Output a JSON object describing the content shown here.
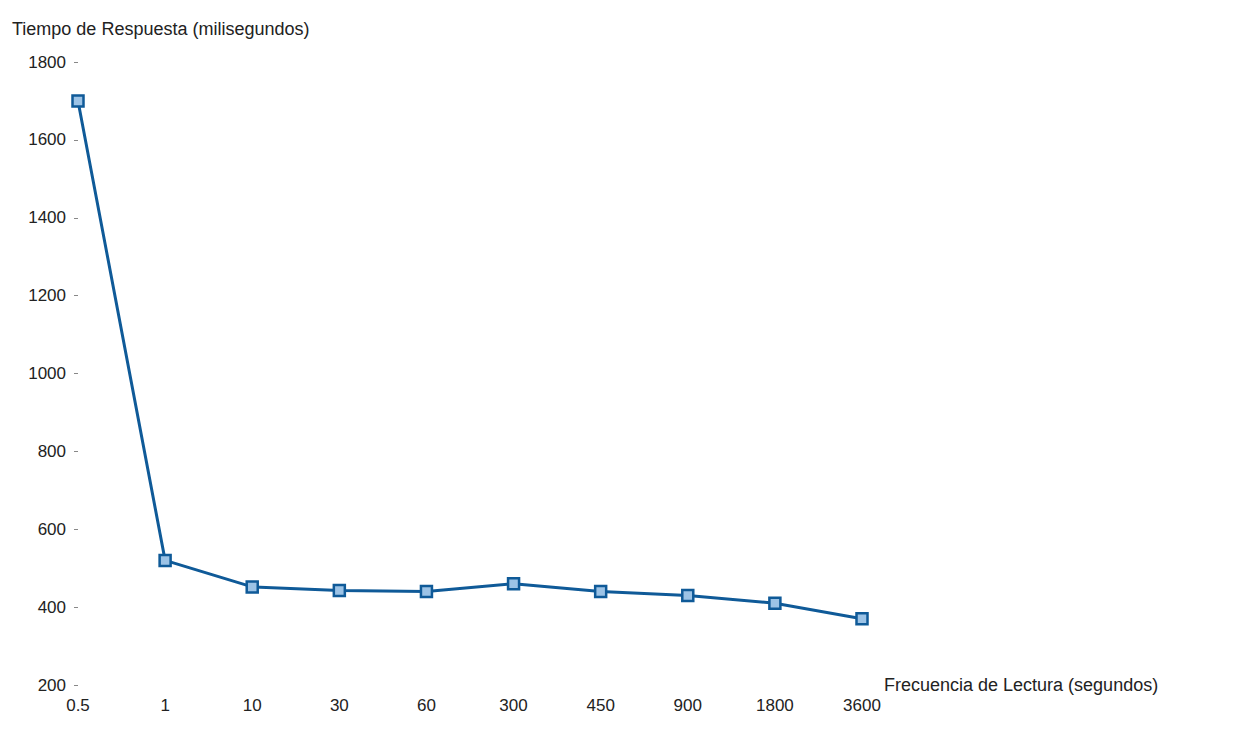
{
  "chart_data": {
    "type": "line",
    "x_label": "Frecuencia de Lectura (segundos)",
    "y_label": "Tiempo de Respuesta (milisegundos)",
    "categories": [
      "0.5",
      "1",
      "10",
      "30",
      "60",
      "300",
      "450",
      "900",
      "1800",
      "3600"
    ],
    "values": [
      1700,
      520,
      452,
      443,
      440,
      460,
      440,
      430,
      410,
      370
    ],
    "color": "#0f5a98",
    "marker": "square",
    "ylim": [
      200,
      1800
    ],
    "yticks": [
      200,
      400,
      600,
      800,
      1000,
      1200,
      1400,
      1600,
      1800
    ],
    "grid": false
  }
}
